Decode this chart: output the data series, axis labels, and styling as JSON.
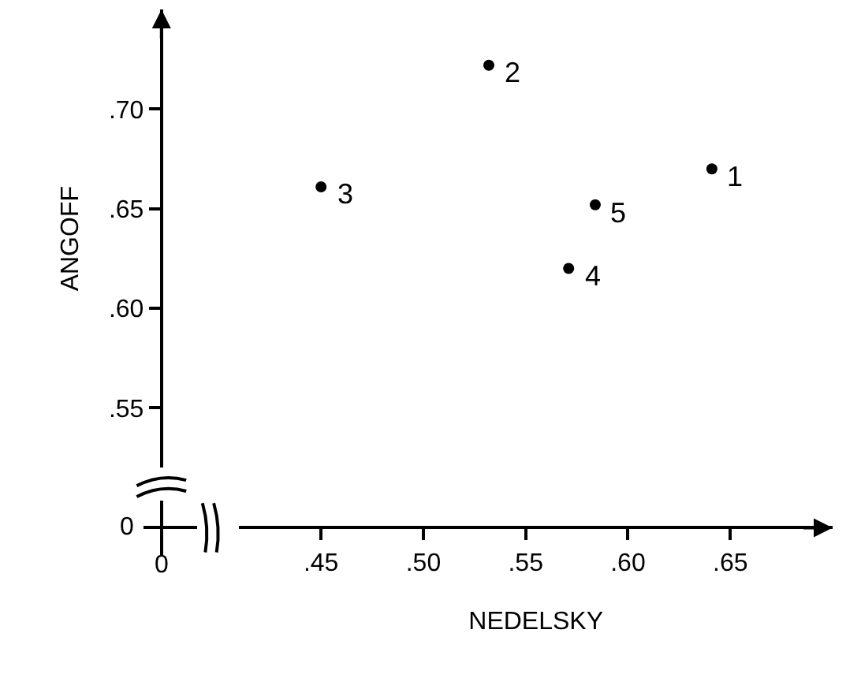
{
  "chart_data": {
    "type": "scatter",
    "xlabel": "NEDELSKY",
    "ylabel": "ANGOFF",
    "x": [
      0.641,
      0.532,
      0.45,
      0.571,
      0.584
    ],
    "values": [
      0.67,
      0.722,
      0.661,
      0.62,
      0.652
    ],
    "color": "#000000",
    "marker": "circle",
    "grid": false,
    "legend": false,
    "xlim": [
      0.41,
      0.7
    ],
    "ylim": [
      0.52,
      0.75
    ],
    "xticks": [
      {
        "value": 0.45,
        "label": ".45"
      },
      {
        "value": 0.5,
        "label": ".50"
      },
      {
        "value": 0.55,
        "label": ".55"
      },
      {
        "value": 0.6,
        "label": ".60"
      },
      {
        "value": 0.65,
        "label": ".65"
      }
    ],
    "yticks": [
      {
        "value": 0.55,
        "label": ".55"
      },
      {
        "value": 0.6,
        "label": ".60"
      },
      {
        "value": 0.65,
        "label": ".65"
      },
      {
        "value": 0.7,
        "label": ".70"
      }
    ],
    "annotations": [
      "0",
      "0",
      {
        "text": "1",
        "x": 0.641,
        "y": 0.67
      },
      {
        "text": "2",
        "x": 0.532,
        "y": 0.722
      },
      {
        "text": "3",
        "x": 0.45,
        "y": 0.661
      },
      {
        "text": "4",
        "x": 0.571,
        "y": 0.62
      },
      {
        "text": "5",
        "x": 0.584,
        "y": 0.652
      }
    ]
  }
}
